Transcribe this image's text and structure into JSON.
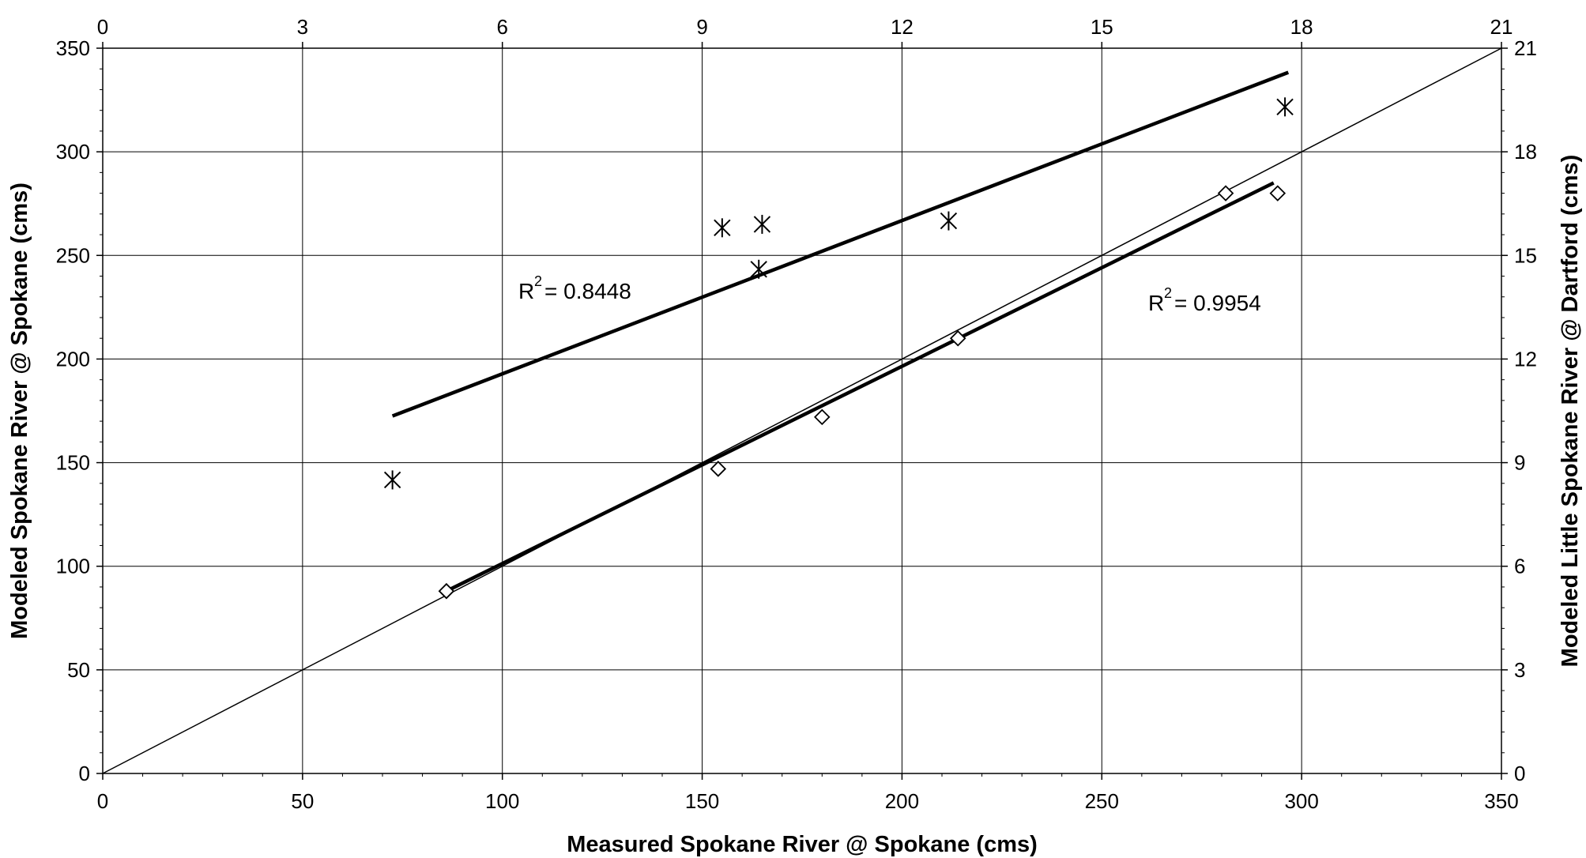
{
  "chart_data": {
    "type": "scatter",
    "title": "",
    "xlabel": "Measured Spokane River @ Spokane (cms)",
    "ylabel": "Modeled Spokane River @ Spokane (cms)",
    "y2label": "Modeled Little Spokane River @ Dartford (cms)",
    "xlim": [
      0,
      350
    ],
    "ylim": [
      0,
      350
    ],
    "x2lim": [
      0,
      21
    ],
    "y2lim": [
      0,
      21
    ],
    "x_ticks": [
      "0",
      "50",
      "100",
      "150",
      "200",
      "250",
      "300",
      "350"
    ],
    "y_ticks": [
      "0",
      "50",
      "100",
      "150",
      "200",
      "250",
      "300",
      "350"
    ],
    "x2_ticks": [
      "0",
      "3",
      "6",
      "9",
      "12",
      "15",
      "18",
      "21"
    ],
    "y2_ticks": [
      "0",
      "3",
      "6",
      "9",
      "12",
      "15",
      "18",
      "21"
    ],
    "grid": true,
    "series": [
      {
        "marker": "diamond",
        "axis": "primary",
        "points": [
          [
            86,
            88
          ],
          [
            154,
            147
          ],
          [
            180,
            172
          ],
          [
            214,
            210
          ],
          [
            281,
            280
          ],
          [
            294,
            280
          ]
        ]
      },
      {
        "marker": "star",
        "axis": "secondary",
        "points": [
          [
            4.35,
            8.5
          ],
          [
            9.3,
            15.8
          ],
          [
            9.85,
            14.6
          ],
          [
            9.9,
            15.9
          ],
          [
            12.7,
            16.0
          ],
          [
            17.75,
            19.3
          ]
        ]
      }
    ],
    "trendlines": [
      {
        "axis": "primary",
        "x": [
          86,
          293
        ],
        "y": [
          88,
          285
        ],
        "r2_label": "0.9954"
      },
      {
        "axis": "secondary",
        "x": [
          4.35,
          17.8
        ],
        "y": [
          10.35,
          20.3
        ],
        "r2_label": "0.8448"
      }
    ],
    "reference_line": {
      "axis": "primary",
      "x": [
        0,
        350
      ],
      "y": [
        0,
        350
      ]
    }
  }
}
